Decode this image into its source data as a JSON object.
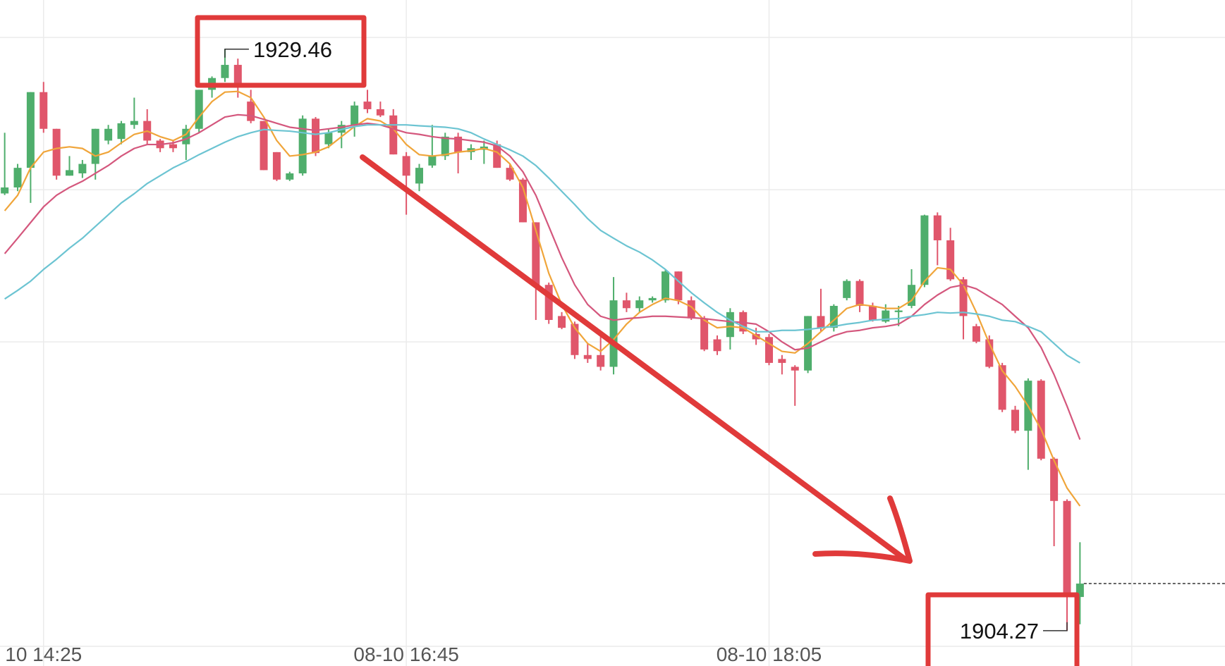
{
  "chart_data": {
    "type": "candlestick",
    "categories": [
      null,
      null,
      null,
      "10 14:25",
      null,
      null,
      null,
      null,
      null,
      null,
      null,
      null,
      null,
      null,
      null,
      null,
      null,
      null,
      null,
      null,
      null,
      null,
      null,
      null,
      null,
      null,
      null,
      null,
      null,
      null,
      null,
      "08-10 16:45",
      null,
      null,
      null,
      null,
      null,
      null,
      null,
      null,
      null,
      null,
      null,
      null,
      null,
      null,
      null,
      null,
      null,
      null,
      null,
      null,
      null,
      null,
      null,
      null,
      null,
      null,
      null,
      "08-10 18:05",
      null,
      null,
      null,
      null,
      null,
      null,
      null,
      null,
      null,
      null,
      null,
      null,
      null,
      null,
      null,
      null,
      null,
      null,
      null,
      null,
      null,
      null,
      null,
      null
    ],
    "open": [
      1923.21,
      1923.47,
      1924.32,
      1927.6,
      1926.01,
      1923.98,
      1924.08,
      1924.49,
      1925.5,
      1925.57,
      1926.18,
      1926.35,
      1925.5,
      1925.34,
      1925.34,
      1926.01,
      1927.7,
      1928.21,
      1928.78,
      1927.19,
      1926.35,
      1925.0,
      1923.81,
      1924.08,
      1926.45,
      1925.34,
      1925.84,
      1926.18,
      1927.19,
      1926.86,
      1926.59,
      1924.83,
      1923.64,
      1924.42,
      1924.83,
      1925.67,
      1925.0,
      1925.1,
      1925.34,
      1924.32,
      1923.81,
      1921.96,
      1919.25,
      1917.9,
      1917.56,
      1916.21,
      1916.21,
      1915.7,
      1918.58,
      1918.24,
      1918.58,
      1918.58,
      1919.83,
      1918.58,
      1917.8,
      1916.89,
      1916.99,
      1918.07,
      1917.12,
      1916.99,
      1916.04,
      1915.7,
      1915.54,
      1917.9,
      1917.39,
      1918.68,
      1919.42,
      1918.34,
      1917.66,
      1918.07,
      1918.34,
      1919.25,
      1922.26,
      1921.18,
      1919.49,
      1917.46,
      1916.89,
      1915.77,
      1913.84,
      1912.93,
      1915.1,
      1911.72,
      1909.89,
      1905.73
    ],
    "high": [
      1925.84,
      1924.49,
      1927.6,
      1928.04,
      1926.01,
      1924.83,
      1924.66,
      1926.01,
      1926.18,
      1926.35,
      1927.36,
      1926.86,
      1925.57,
      1925.5,
      1926.18,
      1927.7,
      1928.28,
      1929.46,
      1929.05,
      1927.7,
      1926.35,
      1925.0,
      1924.15,
      1926.59,
      1926.52,
      1926.01,
      1926.35,
      1927.19,
      1927.7,
      1927.19,
      1926.86,
      1925.0,
      1924.49,
      1926.18,
      1925.84,
      1925.84,
      1925.34,
      1925.5,
      1925.5,
      1924.49,
      1923.88,
      1921.96,
      1919.35,
      1918.07,
      1917.66,
      1916.72,
      1917.06,
      1919.59,
      1918.91,
      1918.75,
      1918.75,
      1919.93,
      1919.83,
      1918.75,
      1917.9,
      1917.06,
      1918.24,
      1918.14,
      1917.39,
      1917.12,
      1916.21,
      1915.77,
      1917.9,
      1919.08,
      1918.41,
      1919.49,
      1919.49,
      1918.48,
      1918.41,
      1918.34,
      1919.93,
      1922.29,
      1922.39,
      1921.72,
      1919.59,
      1917.56,
      1917.06,
      1915.87,
      1914.01,
      1915.2,
      1915.16,
      1911.78,
      1909.96,
      1908.1
    ],
    "low": [
      1923.14,
      1923.31,
      1922.8,
      1925.84,
      1923.81,
      1923.98,
      1923.88,
      1923.81,
      1925.34,
      1925.34,
      1926.01,
      1925.34,
      1925.0,
      1925.0,
      1924.66,
      1925.84,
      1927.36,
      1928.04,
      1927.36,
      1926.25,
      1924.22,
      1923.75,
      1923.75,
      1923.98,
      1924.83,
      1925.17,
      1925.17,
      1925.67,
      1926.69,
      1926.52,
      1924.9,
      1922.29,
      1923.31,
      1924.32,
      1924.66,
      1924.08,
      1924.66,
      1924.49,
      1924.32,
      1923.75,
      1921.96,
      1917.73,
      1917.56,
      1917.33,
      1916.04,
      1915.87,
      1915.54,
      1915.37,
      1918.07,
      1918.07,
      1918.48,
      1918.48,
      1918.41,
      1917.73,
      1916.38,
      1916.21,
      1916.45,
      1917.12,
      1916.65,
      1915.77,
      1915.37,
      1914.01,
      1915.43,
      1917.23,
      1917.23,
      1918.58,
      1918.07,
      1917.66,
      1917.6,
      1917.46,
      1918.24,
      1919.15,
      1920.1,
      1919.42,
      1916.89,
      1916.72,
      1915.64,
      1913.74,
      1912.83,
      1911.24,
      1911.65,
      1907.93,
      1904.27,
      1904.55
    ],
    "close": [
      1923.47,
      1924.32,
      1927.6,
      1926.01,
      1923.98,
      1924.22,
      1924.49,
      1926.01,
      1926.01,
      1926.25,
      1926.35,
      1925.5,
      1925.17,
      1925.17,
      1926.01,
      1927.7,
      1928.21,
      1928.78,
      1927.87,
      1926.35,
      1924.22,
      1923.81,
      1924.08,
      1926.45,
      1924.96,
      1925.84,
      1926.18,
      1927.02,
      1926.86,
      1926.59,
      1924.9,
      1923.98,
      1924.32,
      1924.83,
      1925.67,
      1925.0,
      1925.17,
      1925.24,
      1924.32,
      1923.81,
      1921.96,
      1919.25,
      1917.73,
      1917.39,
      1916.21,
      1916.04,
      1915.7,
      1918.58,
      1918.24,
      1918.58,
      1918.68,
      1919.83,
      1918.58,
      1917.8,
      1916.45,
      1916.38,
      1918.07,
      1917.23,
      1916.89,
      1915.87,
      1915.87,
      1915.54,
      1917.9,
      1917.39,
      1918.34,
      1919.42,
      1918.34,
      1917.73,
      1918.14,
      1918.14,
      1919.25,
      1922.26,
      1921.18,
      1919.49,
      1917.9,
      1916.79,
      1915.7,
      1913.84,
      1912.93,
      1915.1,
      1911.72,
      1909.89,
      1905.73,
      1906.31
    ],
    "up_color": "#4fae6c",
    "down_color": "#e0566b",
    "series": [
      {
        "color": "#f0a53a",
        "values": [
          1922.46,
          1923.13,
          1924.32,
          1925.0,
          1925.16,
          1925.23,
          1925.16,
          1924.83,
          1925.0,
          1925.4,
          1925.77,
          1925.91,
          1925.67,
          1925.5,
          1925.77,
          1926.52,
          1927.19,
          1927.6,
          1927.63,
          1927.36,
          1926.52,
          1925.5,
          1924.83,
          1924.89,
          1925.0,
          1925.23,
          1925.67,
          1926.11,
          1926.45,
          1926.35,
          1926.01,
          1925.33,
          1924.89,
          1924.83,
          1924.89,
          1925.0,
          1925.06,
          1925.16,
          1925.0,
          1924.49,
          1923.47,
          1921.61,
          1919.75,
          1918.4,
          1917.39,
          1916.71,
          1916.37,
          1916.88,
          1917.55,
          1918.06,
          1918.4,
          1918.67,
          1918.57,
          1918.3,
          1917.72,
          1917.39,
          1917.45,
          1917.39,
          1917.05,
          1916.71,
          1916.37,
          1916.3,
          1916.71,
          1917.22,
          1917.72,
          1918.23,
          1918.4,
          1918.33,
          1918.23,
          1918.23,
          1918.57,
          1919.41,
          1919.99,
          1919.92,
          1919.25,
          1918.06,
          1916.71,
          1915.53,
          1914.85,
          1914.0,
          1912.99,
          1911.64,
          1910.45,
          1909.67
        ]
      },
      {
        "color": "#d4577d",
        "values": [
          1920.6,
          1921.27,
          1921.95,
          1922.63,
          1923.13,
          1923.47,
          1923.74,
          1924.08,
          1924.42,
          1924.83,
          1925.16,
          1925.33,
          1925.33,
          1925.4,
          1925.57,
          1925.84,
          1926.18,
          1926.52,
          1926.62,
          1926.58,
          1926.42,
          1926.25,
          1926.08,
          1926.01,
          1925.94,
          1926.01,
          1926.08,
          1926.18,
          1926.25,
          1926.18,
          1926.01,
          1925.84,
          1925.77,
          1925.67,
          1925.6,
          1925.57,
          1925.5,
          1925.43,
          1925.27,
          1924.83,
          1924.15,
          1923.13,
          1921.78,
          1920.43,
          1919.25,
          1918.4,
          1917.89,
          1917.72,
          1917.79,
          1917.83,
          1917.89,
          1917.89,
          1917.86,
          1917.83,
          1917.79,
          1917.72,
          1917.66,
          1917.62,
          1917.55,
          1917.22,
          1916.78,
          1916.44,
          1916.51,
          1916.78,
          1917.05,
          1917.22,
          1917.28,
          1917.39,
          1917.45,
          1917.55,
          1917.89,
          1918.4,
          1918.81,
          1919.14,
          1919.25,
          1919.08,
          1918.74,
          1918.4,
          1917.89,
          1917.39,
          1916.54,
          1915.36,
          1914.0,
          1912.55
        ]
      },
      {
        "color": "#6cc4d2",
        "values": [
          1918.64,
          1919.01,
          1919.41,
          1919.92,
          1920.36,
          1920.84,
          1921.27,
          1921.78,
          1922.29,
          1922.8,
          1923.2,
          1923.64,
          1923.98,
          1924.32,
          1924.59,
          1924.89,
          1925.16,
          1925.43,
          1925.67,
          1925.84,
          1925.98,
          1925.94,
          1925.91,
          1925.84,
          1925.77,
          1925.84,
          1925.98,
          1926.11,
          1926.18,
          1926.18,
          1926.18,
          1926.18,
          1926.14,
          1926.11,
          1926.08,
          1926.01,
          1925.84,
          1925.57,
          1925.33,
          1925.1,
          1924.83,
          1924.42,
          1923.88,
          1923.3,
          1922.73,
          1922.12,
          1921.61,
          1921.27,
          1920.94,
          1920.67,
          1920.33,
          1919.92,
          1919.41,
          1918.91,
          1918.47,
          1918.06,
          1917.72,
          1917.45,
          1917.22,
          1917.22,
          1917.28,
          1917.28,
          1917.32,
          1917.39,
          1917.45,
          1917.55,
          1917.62,
          1917.72,
          1917.76,
          1917.79,
          1917.89,
          1917.96,
          1918.06,
          1918.03,
          1918.06,
          1917.99,
          1917.89,
          1917.72,
          1917.66,
          1917.45,
          1917.22,
          1916.71,
          1916.2,
          1915.87
        ]
      }
    ],
    "ylim": [
      1902.74,
      1931.59
    ],
    "yticks": [
      1929.97,
      1923.37,
      1916.78,
      1910.18,
      1903.59
    ],
    "grid": true
  }
}
